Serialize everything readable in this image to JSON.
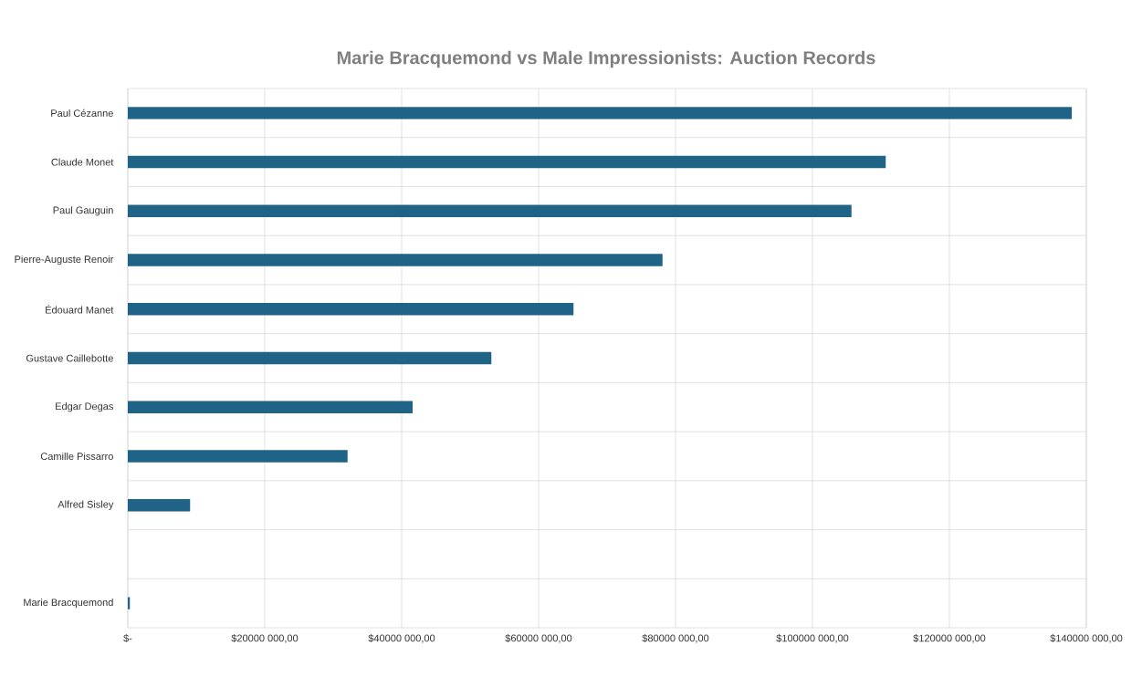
{
  "chart_data": {
    "type": "bar",
    "orientation": "horizontal",
    "title": "Marie Bracquemond vs Male Impressionists: Auction Records",
    "categories": [
      "Paul Cézanne",
      "Claude Monet",
      "Paul Gauguin",
      "Pierre-Auguste Renoir",
      "Édouard Manet",
      "Gustave Caillebotte",
      "Edgar Degas",
      "Camille Pissarro",
      "Alfred Sisley",
      null,
      "Marie Bracquemond"
    ],
    "values": [
      137900000,
      110700000,
      105700000,
      78100000,
      65100000,
      53100000,
      41600000,
      32100000,
      9100000,
      null,
      300000
    ],
    "color": "#1f6386",
    "xlim": [
      0,
      140000000
    ],
    "xticks": [
      {
        "value": 0,
        "label": "$-"
      },
      {
        "value": 20000000,
        "label": "$20000 000,00"
      },
      {
        "value": 40000000,
        "label": "$40000 000,00"
      },
      {
        "value": 60000000,
        "label": "$60000 000,00"
      },
      {
        "value": 80000000,
        "label": "$80000 000,00"
      },
      {
        "value": 100000000,
        "label": "$100000 000,00"
      },
      {
        "value": 120000000,
        "label": "$120000 000,00"
      },
      {
        "value": 140000000,
        "label": "$140000 000,00"
      }
    ],
    "grid": true
  }
}
